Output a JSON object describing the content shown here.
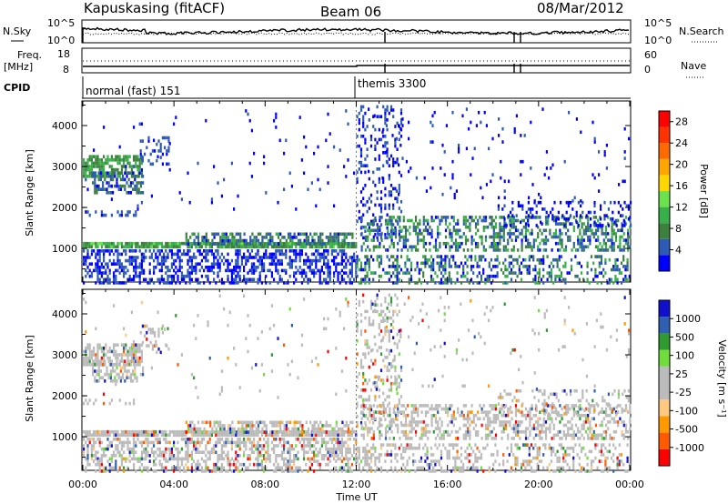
{
  "header": {
    "station": "Kapuskasing (fitACF)",
    "beam": "Beam 06",
    "date": "08/Mar/2012"
  },
  "strip_labels": {
    "nsky": "N.Sky",
    "nsearch": "N.Search",
    "nsky_ticks": [
      "10^5",
      "10^0"
    ],
    "nsearch_ticks": [
      "10^5",
      "10^0"
    ],
    "freq_label_1": "Freq.",
    "freq_label_2": "[MHz]",
    "freq_ticks": [
      "18",
      "8"
    ],
    "nave": "Nave",
    "nave_ticks": [
      "60",
      "0"
    ],
    "cpid": "CPID"
  },
  "cpid_segments": [
    {
      "label": "normal (fast) 151",
      "start": "00:00",
      "end": "12:00"
    },
    {
      "label": "themis 3300",
      "start": "12:00",
      "end": "24:00"
    }
  ],
  "colors": {
    "power": [
      "#0000ff",
      "#2d5ab4",
      "#3d7f3d",
      "#38b04a",
      "#6be24d",
      "#ffd700",
      "#ffa500",
      "#ff6a00",
      "#ff3300",
      "#ff0000"
    ],
    "velocity": [
      "#ff0000",
      "#ff5a00",
      "#ff9900",
      "#ffc880",
      "#bbbbbb",
      "#bbbbbb",
      "#70dd3c",
      "#2f9a2f",
      "#2f5fb0",
      "#1010cc"
    ]
  },
  "chart_data": [
    {
      "type": "heatmap",
      "name": "Power",
      "xlabel": "",
      "ylabel": "Slant Range [km]",
      "xlim": [
        0,
        24
      ],
      "ylim": [
        180,
        4600
      ],
      "yticks": [
        "1000",
        "2000",
        "3000",
        "4000"
      ],
      "colorbar": {
        "label": "Power [dB]",
        "ticks": [
          "4",
          "8",
          "12",
          "16",
          "20",
          "24",
          "28"
        ],
        "range": [
          0,
          30
        ]
      },
      "grid": true
    },
    {
      "type": "heatmap",
      "name": "Velocity",
      "xlabel": "Time UT",
      "ylabel": "Slant Range [km]",
      "xlim": [
        0,
        24
      ],
      "ylim": [
        180,
        4600
      ],
      "xticks": [
        "00:00",
        "04:00",
        "08:00",
        "12:00",
        "16:00",
        "20:00",
        "00:00"
      ],
      "yticks": [
        "1000",
        "2000",
        "3000",
        "4000"
      ],
      "colorbar": {
        "label": "Velocity [m s⁻¹]",
        "ticks": [
          "1000",
          "500",
          "100",
          "25",
          "-25",
          "-100",
          "-500",
          "-1000"
        ]
      },
      "grid": true
    }
  ]
}
